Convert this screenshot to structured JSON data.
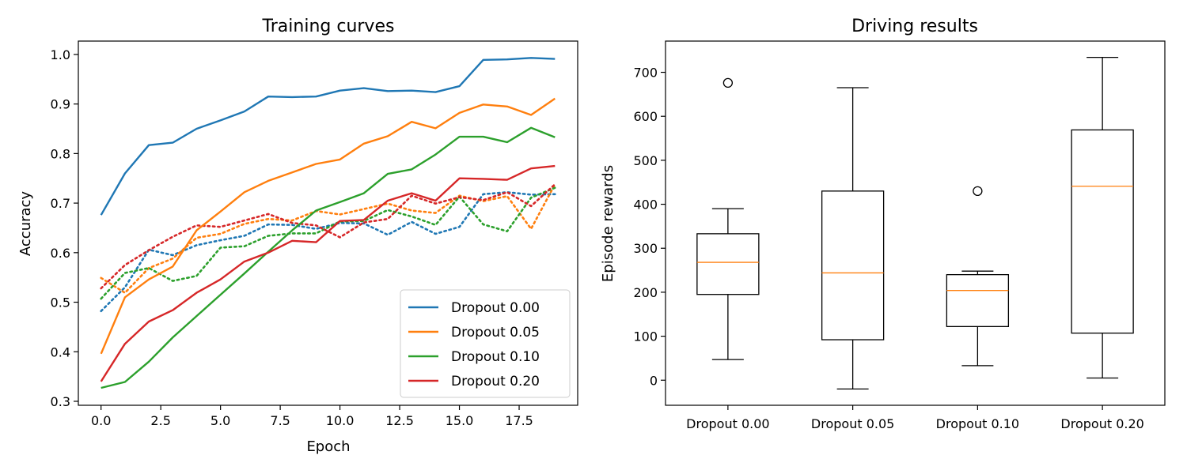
{
  "chart_data": [
    {
      "type": "line",
      "title": "Training curves",
      "xlabel": "Epoch",
      "ylabel": "Accuracy",
      "xlim": [
        -0.95,
        19.95
      ],
      "ylim": [
        0.292,
        1.027
      ],
      "xticks": [
        0,
        2.5,
        5,
        7.5,
        10,
        12.5,
        15,
        17.5
      ],
      "xtick_labels": [
        "0.0",
        "2.5",
        "5.0",
        "7.5",
        "10.0",
        "12.5",
        "15.0",
        "17.5"
      ],
      "yticks": [
        0.3,
        0.4,
        0.5,
        0.6,
        0.7,
        0.8,
        0.9,
        1.0
      ],
      "ytick_labels": [
        "0.3",
        "0.4",
        "0.5",
        "0.6",
        "0.7",
        "0.8",
        "0.9",
        "1.0"
      ],
      "legend_position": "lower-right",
      "x": [
        0,
        1,
        2,
        3,
        4,
        5,
        6,
        7,
        8,
        9,
        10,
        11,
        12,
        13,
        14,
        15,
        16,
        17,
        18,
        19
      ],
      "series": [
        {
          "name": "Dropout 0.00",
          "style": "solid",
          "color": "#1f77b4",
          "values": [
            0.676,
            0.76,
            0.817,
            0.822,
            0.85,
            0.867,
            0.885,
            0.915,
            0.914,
            0.915,
            0.927,
            0.932,
            0.926,
            0.927,
            0.924,
            0.936,
            0.989,
            0.99,
            0.993,
            0.991
          ]
        },
        {
          "name": "Dropout 0.05",
          "style": "solid",
          "color": "#ff7f0e",
          "values": [
            0.396,
            0.51,
            0.546,
            0.572,
            0.645,
            0.683,
            0.722,
            0.745,
            0.762,
            0.779,
            0.788,
            0.82,
            0.835,
            0.864,
            0.851,
            0.882,
            0.899,
            0.895,
            0.878,
            0.911
          ]
        },
        {
          "name": "Dropout 0.10",
          "style": "solid",
          "color": "#2ca02c",
          "values": [
            0.327,
            0.339,
            0.38,
            0.429,
            0.472,
            0.515,
            0.558,
            0.602,
            0.645,
            0.685,
            0.702,
            0.72,
            0.759,
            0.768,
            0.798,
            0.834,
            0.834,
            0.823,
            0.852,
            0.833
          ]
        },
        {
          "name": "Dropout 0.20",
          "style": "solid",
          "color": "#d62728",
          "values": [
            0.34,
            0.416,
            0.461,
            0.484,
            0.519,
            0.546,
            0.582,
            0.6,
            0.624,
            0.621,
            0.664,
            0.666,
            0.705,
            0.72,
            0.705,
            0.75,
            0.749,
            0.747,
            0.77,
            0.775
          ]
        },
        {
          "style": "dotted",
          "color": "#1f77b4",
          "values": [
            0.482,
            0.53,
            0.606,
            0.595,
            0.615,
            0.625,
            0.634,
            0.657,
            0.656,
            0.648,
            0.66,
            0.659,
            0.636,
            0.662,
            0.638,
            0.652,
            0.718,
            0.722,
            0.717,
            0.718
          ]
        },
        {
          "style": "dotted",
          "color": "#ff7f0e",
          "values": [
            0.549,
            0.519,
            0.569,
            0.588,
            0.63,
            0.638,
            0.658,
            0.668,
            0.665,
            0.684,
            0.677,
            0.688,
            0.699,
            0.685,
            0.68,
            0.715,
            0.704,
            0.714,
            0.648,
            0.738
          ]
        },
        {
          "style": "dotted",
          "color": "#2ca02c",
          "values": [
            0.507,
            0.559,
            0.569,
            0.543,
            0.553,
            0.61,
            0.613,
            0.634,
            0.639,
            0.639,
            0.663,
            0.664,
            0.686,
            0.673,
            0.656,
            0.713,
            0.657,
            0.643,
            0.711,
            0.731
          ]
        },
        {
          "style": "dotted",
          "color": "#d62728",
          "values": [
            0.528,
            0.575,
            0.605,
            0.632,
            0.655,
            0.652,
            0.665,
            0.678,
            0.66,
            0.655,
            0.631,
            0.661,
            0.668,
            0.715,
            0.699,
            0.712,
            0.706,
            0.722,
            0.694,
            0.738
          ]
        }
      ]
    },
    {
      "type": "box",
      "title": "Driving results",
      "xlabel": "",
      "ylabel": "Episode rewards",
      "ylim": [
        -57,
        771
      ],
      "yticks": [
        0,
        100,
        200,
        300,
        400,
        500,
        600,
        700
      ],
      "ytick_labels": [
        "0",
        "100",
        "200",
        "300",
        "400",
        "500",
        "600",
        "700"
      ],
      "categories": [
        "Dropout 0.00",
        "Dropout 0.05",
        "Dropout 0.10",
        "Dropout 0.20"
      ],
      "box_color": "#000000",
      "median_color": "#ff7f0e",
      "boxes": [
        {
          "whisker_low": 47,
          "q1": 195,
          "median": 268,
          "q3": 333,
          "whisker_high": 390,
          "outliers": [
            676
          ]
        },
        {
          "whisker_low": -20,
          "q1": 92,
          "median": 244,
          "q3": 430,
          "whisker_high": 665,
          "outliers": []
        },
        {
          "whisker_low": 33,
          "q1": 122,
          "median": 204,
          "q3": 240,
          "whisker_high": 248,
          "outliers": [
            430
          ]
        },
        {
          "whisker_low": 5,
          "q1": 107,
          "median": 441,
          "q3": 569,
          "whisker_high": 734,
          "outliers": []
        }
      ]
    }
  ]
}
